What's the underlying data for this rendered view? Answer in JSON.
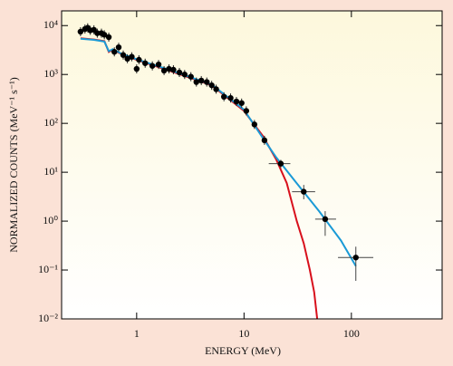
{
  "chart_data": {
    "type": "scatter",
    "xlabel": "ENERGY (MeV)",
    "ylabel": "NORMALIZED COUNTS (MeV⁻¹ s⁻¹)",
    "xscale": "log",
    "yscale": "log",
    "xlim": [
      0.2,
      700
    ],
    "ylim": [
      0.01,
      20000
    ],
    "xticks": [
      1,
      10,
      100
    ],
    "yticks": [
      {
        "value": 0.01,
        "label": "10⁻²"
      },
      {
        "value": 0.1,
        "label": "10⁻¹"
      },
      {
        "value": 1,
        "label": "10⁰"
      },
      {
        "value": 10,
        "label": "10¹"
      },
      {
        "value": 100,
        "label": "10²"
      },
      {
        "value": 1000,
        "label": "10³"
      },
      {
        "value": 10000,
        "label": "10⁴"
      }
    ],
    "points": {
      "color": "#000000",
      "x": [
        0.3,
        0.33,
        0.35,
        0.37,
        0.4,
        0.43,
        0.47,
        0.5,
        0.55,
        0.62,
        0.68,
        0.75,
        0.82,
        0.9,
        1.0,
        1.05,
        1.2,
        1.4,
        1.6,
        1.8,
        2.0,
        2.2,
        2.5,
        2.8,
        3.2,
        3.6,
        4.0,
        4.5,
        5.0,
        5.5,
        6.5,
        7.5,
        8.5,
        9.5,
        10.5,
        12.5,
        15.5,
        22,
        36,
        57,
        110
      ],
      "values": [
        7500,
        8500,
        9000,
        8000,
        8200,
        7000,
        7000,
        6500,
        5800,
        2900,
        3600,
        2500,
        2100,
        2300,
        1300,
        2000,
        1700,
        1500,
        1600,
        1200,
        1300,
        1250,
        1100,
        1000,
        900,
        700,
        750,
        700,
        600,
        500,
        350,
        330,
        280,
        260,
        180,
        95,
        45,
        15,
        4.0,
        1.1,
        0.18
      ],
      "x_lo": [
        null,
        null,
        null,
        null,
        null,
        null,
        null,
        null,
        null,
        null,
        null,
        null,
        null,
        null,
        null,
        null,
        null,
        null,
        null,
        null,
        null,
        null,
        null,
        null,
        null,
        null,
        null,
        null,
        null,
        null,
        null,
        null,
        null,
        null,
        null,
        null,
        null,
        17,
        28,
        46,
        75
      ],
      "x_hi": [
        null,
        null,
        null,
        null,
        null,
        null,
        null,
        null,
        null,
        null,
        null,
        null,
        null,
        null,
        null,
        null,
        null,
        null,
        null,
        null,
        null,
        null,
        null,
        null,
        null,
        null,
        null,
        null,
        null,
        null,
        null,
        null,
        null,
        null,
        null,
        null,
        null,
        27,
        46,
        72,
        160
      ],
      "y_lo": [
        null,
        null,
        null,
        null,
        null,
        null,
        null,
        null,
        null,
        null,
        null,
        null,
        null,
        null,
        null,
        null,
        null,
        null,
        null,
        null,
        null,
        null,
        null,
        null,
        null,
        null,
        null,
        null,
        null,
        null,
        null,
        null,
        null,
        null,
        null,
        null,
        null,
        12,
        2.8,
        0.5,
        0.06
      ],
      "y_hi": [
        null,
        null,
        null,
        null,
        null,
        null,
        null,
        null,
        null,
        null,
        null,
        null,
        null,
        null,
        null,
        null,
        null,
        null,
        null,
        null,
        null,
        null,
        null,
        null,
        null,
        null,
        null,
        null,
        null,
        null,
        null,
        null,
        null,
        null,
        null,
        null,
        null,
        18,
        5.5,
        1.6,
        0.3
      ]
    },
    "curves": [
      {
        "color": "#d8101c",
        "x": [
          0.3,
          0.4,
          0.5,
          0.55,
          0.6,
          0.7,
          1,
          2,
          5,
          10,
          15,
          20,
          25,
          31,
          36,
          41,
          45,
          48
        ],
        "values": [
          5500,
          5200,
          4800,
          2900,
          3200,
          2700,
          2000,
          1200,
          600,
          180,
          55,
          18,
          6,
          1,
          0.35,
          0.1,
          0.035,
          0.01
        ]
      },
      {
        "color": "#1a9ad6",
        "x": [
          0.3,
          0.4,
          0.5,
          0.55,
          0.6,
          0.7,
          1,
          2,
          5,
          10,
          15,
          20,
          30,
          50,
          80,
          110
        ],
        "values": [
          5400,
          5100,
          4700,
          3000,
          3300,
          2750,
          2050,
          1250,
          620,
          190,
          50,
          20,
          6.5,
          1.6,
          0.4,
          0.12
        ]
      }
    ]
  }
}
